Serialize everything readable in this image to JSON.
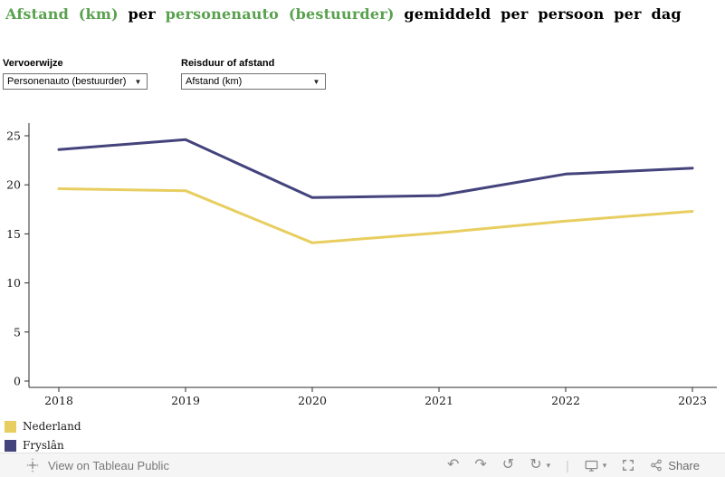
{
  "title": {
    "segments": [
      {
        "text": "Afstand (km)",
        "color": "#59a14f"
      },
      {
        "text": " per ",
        "color": "#000000"
      },
      {
        "text": "personenauto (bestuurder)",
        "color": "#59a14f"
      },
      {
        "text": " gemiddeld per persoon per dag",
        "color": "#000000"
      }
    ]
  },
  "filters": [
    {
      "label": "Vervoerwijze",
      "value": "Personenauto (bestuurder)"
    },
    {
      "label": "Reisduur of afstand",
      "value": "Afstand (km)"
    }
  ],
  "chart_data": {
    "type": "line",
    "x": [
      "2018",
      "2019",
      "2020",
      "2021",
      "2022",
      "2023"
    ],
    "series": [
      {
        "name": "Nederland",
        "color": "#e8ce60",
        "values": [
          19.6,
          19.4,
          14.1,
          15.1,
          16.3,
          17.3
        ]
      },
      {
        "name": "Fryslân",
        "color": "#44437c",
        "values": [
          23.6,
          24.6,
          18.7,
          18.9,
          21.1,
          21.7
        ]
      }
    ],
    "ylim": [
      0,
      25
    ],
    "yticks": [
      0,
      5,
      10,
      15,
      20,
      25
    ],
    "grid": false,
    "legend_position": "bottom-left",
    "title": "Afstand (km) per personenauto (bestuurder) gemiddeld per persoon per dag",
    "xlabel": "",
    "ylabel": ""
  },
  "icons": {
    "undo": "↶",
    "redo": "↷",
    "replay": "↺",
    "refresh": "↻",
    "caret": "▾",
    "divider": "|",
    "dropdown_caret": "▼",
    "tableau_logo": "tableau-logo",
    "display": "monitor",
    "fullscreen": "expand-corners",
    "share": "share-nodes"
  },
  "toolbar": {
    "view_text": "View on Tableau Public",
    "share_label": "Share"
  }
}
